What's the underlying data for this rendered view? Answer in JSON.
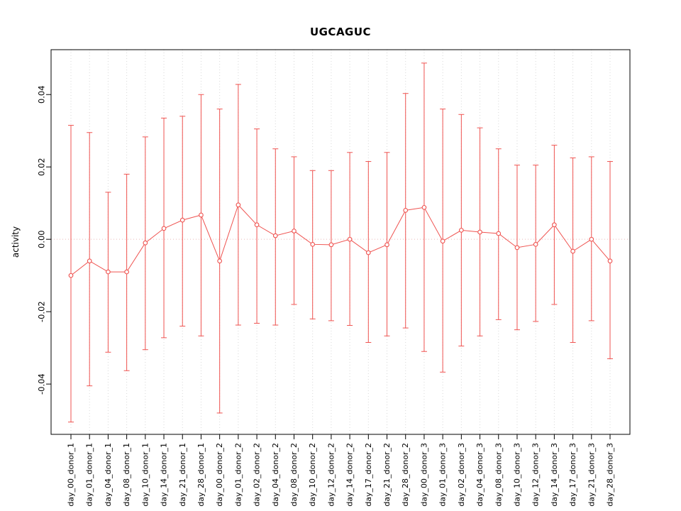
{
  "chart_data": {
    "type": "line",
    "subtype": "points-with-error-bars",
    "title": "UGCAGUC",
    "xlabel": "",
    "ylabel": "activity",
    "ylim": [
      -0.0539,
      0.0524
    ],
    "ytick_values": [
      -0.04,
      -0.02,
      0.0,
      0.02,
      0.04
    ],
    "ytick_labels": [
      "-0.04",
      "-0.02",
      "0.00",
      "0.02",
      "0.04"
    ],
    "grid": "vertical-dotted",
    "zero_line": true,
    "legend_position": "none",
    "categories": [
      "day_00_donor_1",
      "day_01_donor_1",
      "day_04_donor_1",
      "day_08_donor_1",
      "day_10_donor_1",
      "day_14_donor_1",
      "day_21_donor_1",
      "day_28_donor_1",
      "day_00_donor_2",
      "day_01_donor_2",
      "day_02_donor_2",
      "day_04_donor_2",
      "day_08_donor_2",
      "day_10_donor_2",
      "day_12_donor_2",
      "day_14_donor_2",
      "day_17_donor_2",
      "day_21_donor_2",
      "day_28_donor_2",
      "day_00_donor_3",
      "day_01_donor_3",
      "day_02_donor_3",
      "day_04_donor_3",
      "day_08_donor_3",
      "day_10_donor_3",
      "day_12_donor_3",
      "day_14_donor_3",
      "day_17_donor_3",
      "day_21_donor_3",
      "day_28_donor_3"
    ],
    "series": [
      {
        "name": "activity",
        "means": [
          -0.01,
          -0.006,
          -0.009,
          -0.009,
          -0.001,
          0.003,
          0.0053,
          0.0067,
          -0.006,
          0.0095,
          0.004,
          0.001,
          0.0023,
          -0.0014,
          -0.0015,
          0.0,
          -0.0037,
          -0.0015,
          0.008,
          0.0088,
          -0.0005,
          0.0025,
          0.002,
          0.0016,
          -0.0023,
          -0.0014,
          0.004,
          -0.0033,
          0.0,
          -0.006
        ],
        "upper": [
          0.0315,
          0.0295,
          0.013,
          0.018,
          0.0283,
          0.0335,
          0.034,
          0.04,
          0.036,
          0.0428,
          0.0305,
          0.025,
          0.0228,
          0.019,
          0.019,
          0.024,
          0.0215,
          0.024,
          0.0403,
          0.0487,
          0.036,
          0.0345,
          0.0308,
          0.025,
          0.0205,
          0.0205,
          0.026,
          0.0225,
          0.0228,
          0.0215
        ],
        "lower": [
          -0.0505,
          -0.0405,
          -0.0312,
          -0.0363,
          -0.0305,
          -0.0272,
          -0.024,
          -0.0267,
          -0.048,
          -0.0237,
          -0.0232,
          -0.0237,
          -0.018,
          -0.022,
          -0.0225,
          -0.0238,
          -0.0285,
          -0.0267,
          -0.0245,
          -0.031,
          -0.0367,
          -0.0295,
          -0.0267,
          -0.0222,
          -0.025,
          -0.0227,
          -0.018,
          -0.0285,
          -0.0225,
          -0.033
        ]
      }
    ],
    "colors": {
      "series": "#ef5350",
      "grid": "#d8d8d8",
      "zero_line": "#e9b9b9",
      "axis": "#000000",
      "point_fill": "#ffffff",
      "background": "#ffffff"
    }
  }
}
